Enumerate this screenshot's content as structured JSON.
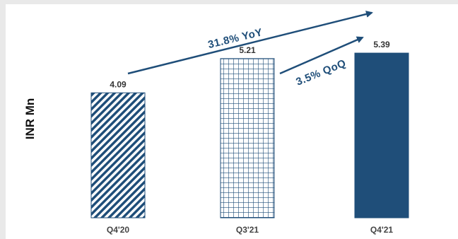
{
  "chart_data": {
    "type": "bar",
    "ylabel": "INR Mn",
    "xlabel": "",
    "categories": [
      "Q4'20",
      "Q3'21",
      "Q4'21"
    ],
    "values": [
      4.09,
      5.21,
      5.39
    ],
    "value_labels": [
      "4.09",
      "5.21",
      "5.39"
    ],
    "bar_styles": [
      "diagonal-hatch",
      "grid-hatch",
      "solid"
    ],
    "ylim": [
      0,
      5.6
    ],
    "grid": false,
    "annotations": [
      {
        "text": "31.8% YoY",
        "from": "Q4'20",
        "to": "Q4'21"
      },
      {
        "text": "3.5% QoQ",
        "from": "Q3'21",
        "to": "Q4'21"
      }
    ],
    "colors": {
      "bar": "#1f4e79",
      "arrow": "#1f4e79"
    }
  }
}
